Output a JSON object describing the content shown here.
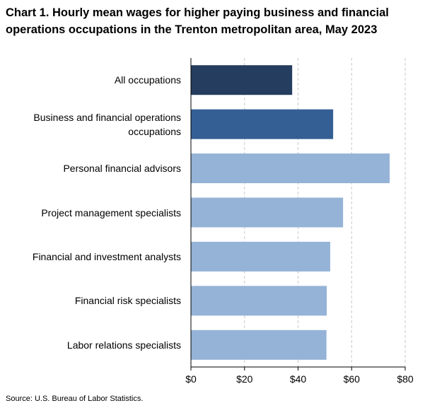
{
  "chart_data": {
    "type": "barh",
    "title": "Chart 1. Hourly mean wages for higher paying business and financial operations occupations in the Trenton metropolitan area, May 2023",
    "categories": [
      "All occupations",
      "Business and financial operations occupations",
      "Personal financial advisors",
      "Project management specialists",
      "Financial and investment analysts",
      "Financial risk specialists",
      "Labor relations specialists"
    ],
    "values": [
      37.8,
      53.1,
      74.2,
      56.8,
      52.0,
      50.7,
      50.6
    ],
    "colors": [
      "#253d5e",
      "#345f94",
      "#95b3d7",
      "#95b3d7",
      "#95b3d7",
      "#95b3d7",
      "#95b3d7"
    ],
    "xlim": [
      0,
      80
    ],
    "xticks": [
      {
        "value": 0,
        "label": "$0"
      },
      {
        "value": 20,
        "label": "$20"
      },
      {
        "value": 40,
        "label": "$40"
      },
      {
        "value": 60,
        "label": "$60"
      },
      {
        "value": 80,
        "label": "$80"
      }
    ],
    "grid": true,
    "source": "Source: U.S. Bureau of Labor Statistics."
  }
}
